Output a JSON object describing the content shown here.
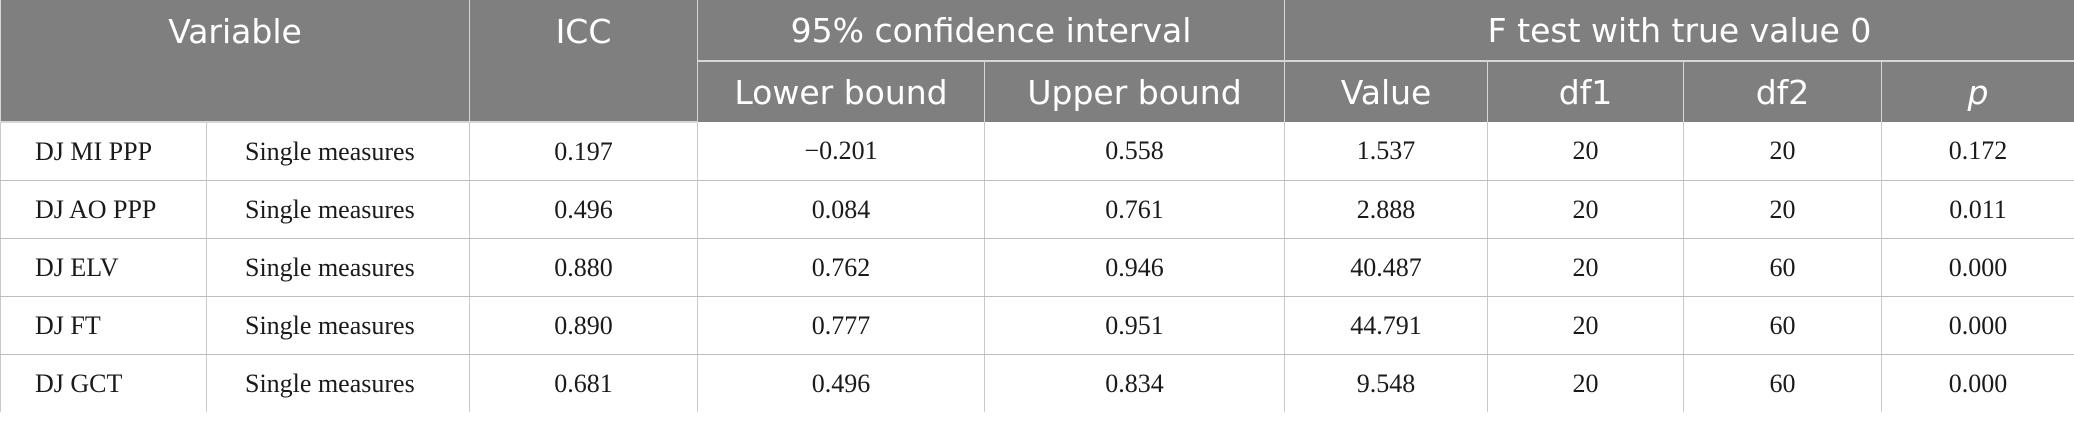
{
  "header": {
    "variable": "Variable",
    "icc": "ICC",
    "ci": "95% confidence interval",
    "ftest": "F test with true value 0",
    "lower": "Lower bound",
    "upper": "Upper bound",
    "value": "Value",
    "df1": "df1",
    "df2": "df2",
    "p": "p"
  },
  "rows": [
    {
      "variable": "DJ MI PPP",
      "measure": "Single measures",
      "icc": "0.197",
      "lower": "−0.201",
      "upper": "0.558",
      "value": "1.537",
      "df1": "20",
      "df2": "20",
      "p": "0.172"
    },
    {
      "variable": "DJ AO PPP",
      "measure": "Single measures",
      "icc": "0.496",
      "lower": "0.084",
      "upper": "0.761",
      "value": "2.888",
      "df1": "20",
      "df2": "20",
      "p": "0.011"
    },
    {
      "variable": "DJ ELV",
      "measure": "Single measures",
      "icc": "0.880",
      "lower": "0.762",
      "upper": "0.946",
      "value": "40.487",
      "df1": "20",
      "df2": "60",
      "p": "0.000"
    },
    {
      "variable": "DJ FT",
      "measure": "Single measures",
      "icc": "0.890",
      "lower": "0.777",
      "upper": "0.951",
      "value": "44.791",
      "df1": "20",
      "df2": "60",
      "p": "0.000"
    },
    {
      "variable": "DJ GCT",
      "measure": "Single measures",
      "icc": "0.681",
      "lower": "0.496",
      "upper": "0.834",
      "value": "9.548",
      "df1": "20",
      "df2": "60",
      "p": "0.000"
    }
  ]
}
